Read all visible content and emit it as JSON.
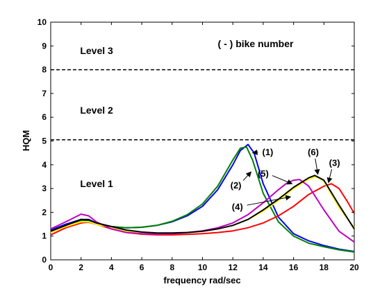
{
  "chart_data": {
    "type": "line",
    "title": "",
    "xlabel": "frequency rad/sec",
    "ylabel": "HQM",
    "xlim": [
      0,
      20
    ],
    "ylim": [
      0,
      10
    ],
    "xticks": [
      0,
      2,
      4,
      6,
      8,
      10,
      12,
      14,
      16,
      18,
      20
    ],
    "yticks": [
      0,
      1,
      2,
      3,
      4,
      5,
      6,
      7,
      8,
      9,
      10
    ],
    "grid": false,
    "legend_note": "( - ) bike number",
    "levels": [
      {
        "label": "Level 3",
        "x": 1.8,
        "y": 8.8
      },
      {
        "label": "Level 2",
        "x": 1.8,
        "y": 6.3
      },
      {
        "label": "Level 1",
        "x": 1.8,
        "y": 3.2
      }
    ],
    "thresholds": [
      {
        "y": 5.05,
        "style": "dashed"
      },
      {
        "y": 8.0,
        "style": "dashed"
      }
    ],
    "series": [
      {
        "name": "(1)",
        "color": "#0000ff",
        "points": [
          [
            0,
            1.25
          ],
          [
            1,
            1.5
          ],
          [
            2,
            1.7
          ],
          [
            2.5,
            1.7
          ],
          [
            3,
            1.55
          ],
          [
            4,
            1.4
          ],
          [
            5,
            1.35
          ],
          [
            6,
            1.37
          ],
          [
            7,
            1.45
          ],
          [
            8,
            1.6
          ],
          [
            9,
            1.85
          ],
          [
            10,
            2.25
          ],
          [
            11,
            2.95
          ],
          [
            12,
            4.0
          ],
          [
            12.5,
            4.6
          ],
          [
            13,
            4.85
          ],
          [
            13.4,
            4.5
          ],
          [
            14,
            3.2
          ],
          [
            15,
            1.8
          ],
          [
            16,
            1.1
          ],
          [
            17,
            0.8
          ],
          [
            18,
            0.6
          ],
          [
            19,
            0.45
          ],
          [
            20,
            0.35
          ]
        ]
      },
      {
        "name": "(2)",
        "color": "#008000",
        "points": [
          [
            0,
            1.2
          ],
          [
            1,
            1.45
          ],
          [
            2,
            1.65
          ],
          [
            2.5,
            1.65
          ],
          [
            3,
            1.55
          ],
          [
            4,
            1.4
          ],
          [
            5,
            1.35
          ],
          [
            6,
            1.37
          ],
          [
            7,
            1.45
          ],
          [
            8,
            1.62
          ],
          [
            9,
            1.9
          ],
          [
            10,
            2.35
          ],
          [
            11,
            3.1
          ],
          [
            12,
            4.2
          ],
          [
            12.5,
            4.7
          ],
          [
            12.9,
            4.75
          ],
          [
            13.3,
            4.2
          ],
          [
            14,
            2.8
          ],
          [
            15,
            1.6
          ],
          [
            16,
            1.0
          ],
          [
            17,
            0.7
          ],
          [
            18,
            0.55
          ],
          [
            19,
            0.42
          ],
          [
            20,
            0.33
          ]
        ]
      },
      {
        "name": "(3)",
        "color": "#ff0000",
        "points": [
          [
            0,
            1.05
          ],
          [
            1,
            1.35
          ],
          [
            2,
            1.55
          ],
          [
            2.5,
            1.58
          ],
          [
            3,
            1.5
          ],
          [
            4,
            1.3
          ],
          [
            5,
            1.15
          ],
          [
            6,
            1.08
          ],
          [
            7,
            1.05
          ],
          [
            8,
            1.05
          ],
          [
            9,
            1.07
          ],
          [
            10,
            1.1
          ],
          [
            11,
            1.15
          ],
          [
            12,
            1.22
          ],
          [
            13,
            1.35
          ],
          [
            14,
            1.55
          ],
          [
            15,
            1.85
          ],
          [
            16,
            2.25
          ],
          [
            17,
            2.75
          ],
          [
            18,
            3.1
          ],
          [
            18.5,
            3.2
          ],
          [
            19,
            3.0
          ],
          [
            19.5,
            2.5
          ],
          [
            20,
            1.95
          ]
        ]
      },
      {
        "name": "(4)",
        "color": "#ffff00",
        "points": [
          [
            0,
            1.15
          ],
          [
            1,
            1.4
          ],
          [
            2,
            1.6
          ],
          [
            2.5,
            1.6
          ],
          [
            3,
            1.5
          ],
          [
            4,
            1.35
          ],
          [
            5,
            1.2
          ],
          [
            6,
            1.12
          ],
          [
            7,
            1.1
          ],
          [
            8,
            1.12
          ],
          [
            9,
            1.15
          ],
          [
            10,
            1.2
          ],
          [
            11,
            1.3
          ],
          [
            12,
            1.45
          ],
          [
            13,
            1.7
          ],
          [
            14,
            2.05
          ],
          [
            15,
            2.5
          ],
          [
            16,
            3.0
          ],
          [
            17,
            3.4
          ],
          [
            17.5,
            3.5
          ],
          [
            18,
            3.3
          ],
          [
            19,
            2.2
          ],
          [
            20,
            1.35
          ]
        ]
      },
      {
        "name": "(5)",
        "color": "#c000c0",
        "points": [
          [
            0,
            1.3
          ],
          [
            1,
            1.6
          ],
          [
            2,
            1.92
          ],
          [
            2.5,
            1.85
          ],
          [
            3,
            1.6
          ],
          [
            4,
            1.3
          ],
          [
            5,
            1.15
          ],
          [
            6,
            1.1
          ],
          [
            7,
            1.08
          ],
          [
            8,
            1.1
          ],
          [
            9,
            1.15
          ],
          [
            10,
            1.22
          ],
          [
            11,
            1.35
          ],
          [
            12,
            1.55
          ],
          [
            13,
            1.9
          ],
          [
            14,
            2.4
          ],
          [
            15,
            2.95
          ],
          [
            15.5,
            3.2
          ],
          [
            16,
            3.35
          ],
          [
            16.4,
            3.38
          ],
          [
            17,
            3.1
          ],
          [
            18,
            2.1
          ],
          [
            19,
            1.2
          ],
          [
            20,
            0.75
          ]
        ]
      },
      {
        "name": "(6)",
        "color": "#000000",
        "points": [
          [
            0,
            1.2
          ],
          [
            1,
            1.45
          ],
          [
            2,
            1.7
          ],
          [
            2.5,
            1.68
          ],
          [
            3,
            1.55
          ],
          [
            4,
            1.4
          ],
          [
            5,
            1.25
          ],
          [
            6,
            1.17
          ],
          [
            7,
            1.13
          ],
          [
            8,
            1.13
          ],
          [
            9,
            1.15
          ],
          [
            10,
            1.2
          ],
          [
            11,
            1.3
          ],
          [
            12,
            1.45
          ],
          [
            13,
            1.7
          ],
          [
            14,
            2.1
          ],
          [
            15,
            2.55
          ],
          [
            16,
            3.05
          ],
          [
            17,
            3.45
          ],
          [
            17.4,
            3.55
          ],
          [
            18,
            3.35
          ],
          [
            19,
            2.3
          ],
          [
            20,
            1.3
          ]
        ]
      }
    ],
    "callouts": [
      {
        "label": "(1)",
        "text_x": 14.3,
        "text_y": 4.4,
        "arrow_to": [
          13.3,
          4.5
        ]
      },
      {
        "label": "(2)",
        "text_x": 12.2,
        "text_y": 3.0,
        "arrow_to": [
          13.2,
          3.7
        ]
      },
      {
        "label": "(3)",
        "text_x": 18.7,
        "text_y": 3.95,
        "arrow_to": [
          18.3,
          3.25
        ]
      },
      {
        "label": "(4)",
        "text_x": 12.3,
        "text_y": 2.1,
        "arrow_to": [
          15.8,
          2.65
        ]
      },
      {
        "label": "(5)",
        "text_x": 14.0,
        "text_y": 3.5,
        "arrow_to": [
          15.9,
          3.2
        ]
      },
      {
        "label": "(6)",
        "text_x": 17.3,
        "text_y": 4.4,
        "arrow_to": [
          17.6,
          3.6
        ]
      }
    ]
  }
}
